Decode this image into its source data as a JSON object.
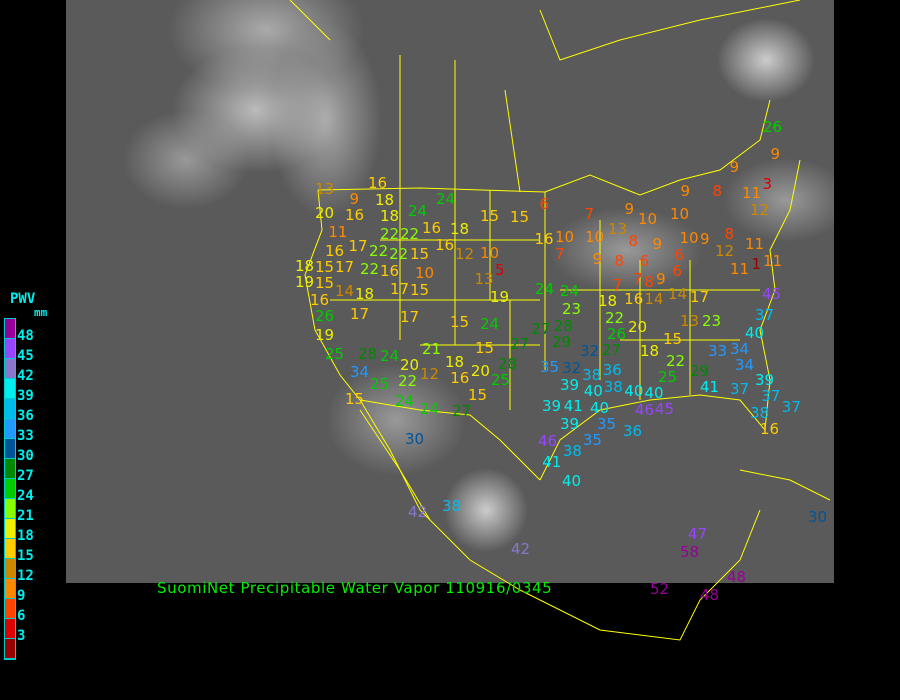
{
  "caption": "SuomiNet Precipitable Water Vapor 110916/0345",
  "legend": {
    "title": "PWV",
    "unit": "mm",
    "labels": [
      "48",
      "45",
      "42",
      "39",
      "36",
      "33",
      "30",
      "27",
      "24",
      "21",
      "18",
      "15",
      "12",
      "9",
      "6",
      "3"
    ],
    "colors": [
      "#990099",
      "#9944ff",
      "#8877cc",
      "#00eeee",
      "#00bbee",
      "#2299ff",
      "#005599",
      "#008800",
      "#00cc00",
      "#88ff00",
      "#eeee00",
      "#ffcc00",
      "#cc8800",
      "#ff8800",
      "#ff4400",
      "#dd0000",
      "#990000"
    ]
  },
  "map": {
    "border_color": "#ffff00",
    "background": "satellite infrared imagery"
  },
  "stations": [
    13,
    9,
    16,
    18,
    24,
    24,
    20,
    16,
    11,
    18,
    22,
    22,
    16,
    18,
    16,
    15,
    15,
    6,
    16,
    17,
    22,
    22,
    15,
    12,
    10,
    18,
    15,
    17,
    22,
    16,
    10,
    5,
    19,
    15,
    14,
    18,
    17,
    15,
    13,
    19,
    16,
    26,
    17,
    17,
    15,
    24,
    19,
    25,
    28,
    24,
    20,
    21,
    18,
    15,
    27,
    27,
    34,
    25,
    22,
    12,
    16,
    20,
    28,
    25,
    15,
    24,
    24,
    27,
    15,
    30,
    24,
    24,
    23,
    28,
    29,
    18,
    27,
    32,
    22,
    26,
    20,
    18,
    22,
    29,
    25,
    15,
    13,
    23,
    33,
    34,
    40,
    37,
    45,
    35,
    32,
    39,
    38,
    36,
    38,
    40,
    41,
    39,
    39,
    40,
    35,
    40,
    40,
    46,
    45,
    36,
    35,
    38,
    46,
    41,
    40,
    41,
    37,
    39,
    34,
    37,
    38,
    37,
    16,
    16,
    10,
    7,
    10,
    9,
    8,
    8,
    9,
    6,
    8,
    9,
    7,
    6,
    14,
    17,
    16,
    14,
    7,
    7,
    9,
    10,
    10,
    10,
    9,
    8,
    12,
    11,
    11,
    1,
    11,
    8,
    9,
    12,
    9,
    11,
    3,
    26,
    9,
    6,
    13,
    42,
    42,
    38,
    47,
    58,
    52,
    48,
    48,
    30
  ]
}
